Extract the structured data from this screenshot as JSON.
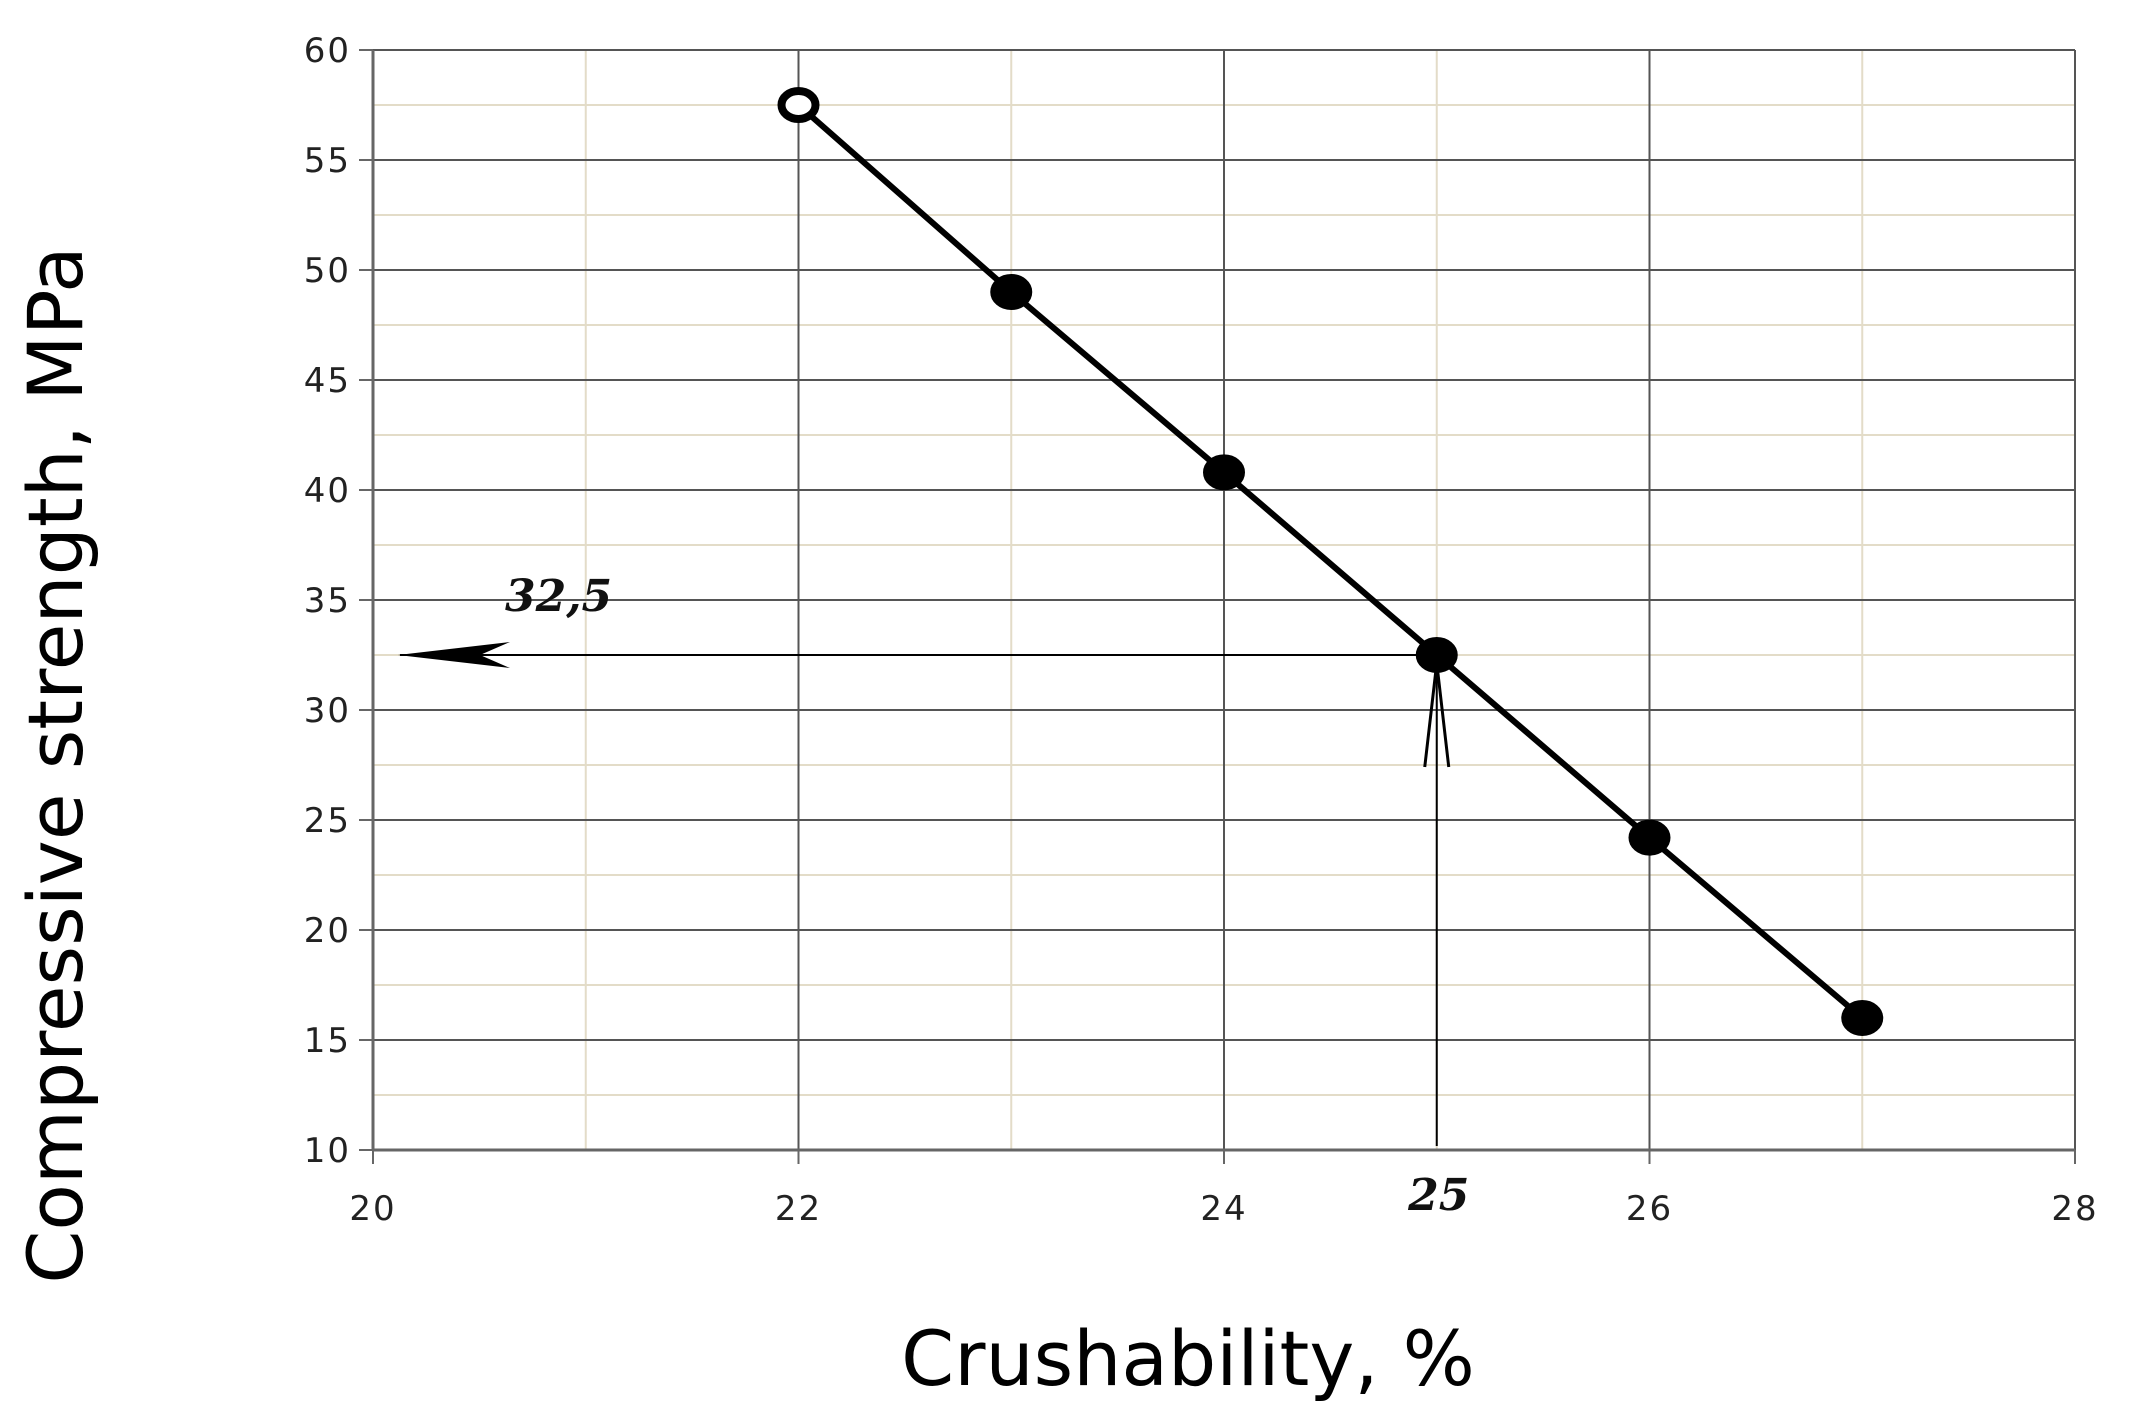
{
  "chart_data": {
    "type": "line",
    "title": "",
    "xlabel": "Crushability, %",
    "ylabel": "Compressive strength, MPa",
    "xlim": [
      20,
      28
    ],
    "ylim": [
      10,
      60
    ],
    "x_ticks": [
      20,
      22,
      24,
      26,
      28
    ],
    "y_ticks": [
      10,
      15,
      20,
      25,
      30,
      35,
      40,
      45,
      50,
      55,
      60
    ],
    "x_tick_labels": [
      "20",
      "22",
      "24",
      "26",
      "28"
    ],
    "y_tick_labels": [
      "10",
      "15",
      "20",
      "25",
      "30",
      "35",
      "40",
      "45",
      "50",
      "55",
      "60"
    ],
    "grid": true,
    "series": [
      {
        "x": [
          22,
          23,
          24,
          25,
          26,
          27
        ],
        "y": [
          57.5,
          49,
          40.8,
          32.5,
          24.2,
          16
        ],
        "markers": [
          "open",
          "filled",
          "filled",
          "filled",
          "filled",
          "filled"
        ]
      }
    ],
    "annotations": [
      {
        "text": "32,5",
        "x": 20,
        "y": 32.5,
        "arrow": "horizontal-to-y-axis"
      },
      {
        "text": "25",
        "x": 25,
        "y": 10,
        "arrow": "vertical-up-from-x-axis"
      }
    ],
    "colors": {
      "line": "#000000",
      "grid_major": "#555555",
      "grid_minor": "#e3dcc8",
      "axis": "#666666"
    }
  }
}
